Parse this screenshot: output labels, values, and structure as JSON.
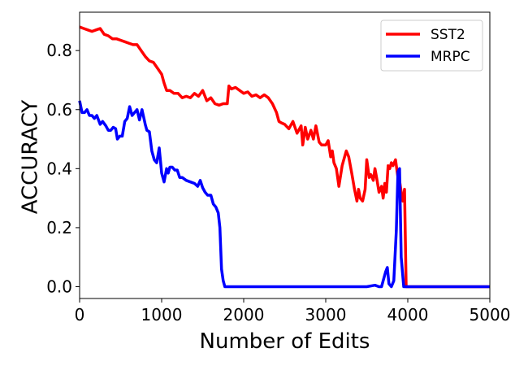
{
  "chart_data": {
    "type": "line",
    "title": "",
    "xlabel": "Number of Edits",
    "ylabel": "ACCURACY",
    "xlim": [
      0,
      5000
    ],
    "ylim": [
      -0.04,
      0.93
    ],
    "xticks": [
      0,
      1000,
      2000,
      3000,
      4000,
      5000
    ],
    "xtick_labels": [
      "0",
      "1000",
      "2000",
      "3000",
      "4000",
      "5000"
    ],
    "yticks": [
      0.0,
      0.2,
      0.4,
      0.6,
      0.8
    ],
    "ytick_labels": [
      "0.0",
      "0.2",
      "0.4",
      "0.6",
      "0.8"
    ],
    "grid": false,
    "legend_position": "top-right",
    "series": [
      {
        "name": "SST2",
        "color": "#ff0000",
        "x": [
          0,
          50,
          100,
          150,
          200,
          250,
          300,
          350,
          400,
          450,
          500,
          550,
          600,
          650,
          700,
          750,
          800,
          850,
          900,
          950,
          1000,
          1030,
          1060,
          1100,
          1150,
          1200,
          1250,
          1300,
          1350,
          1400,
          1450,
          1500,
          1550,
          1600,
          1650,
          1700,
          1750,
          1800,
          1820,
          1850,
          1900,
          1950,
          2000,
          2050,
          2100,
          2150,
          2200,
          2250,
          2300,
          2350,
          2400,
          2430,
          2460,
          2500,
          2550,
          2600,
          2650,
          2700,
          2720,
          2750,
          2780,
          2820,
          2850,
          2880,
          2920,
          2950,
          3000,
          3030,
          3060,
          3080,
          3100,
          3130,
          3160,
          3200,
          3220,
          3250,
          3280,
          3320,
          3350,
          3380,
          3400,
          3420,
          3450,
          3480,
          3500,
          3530,
          3550,
          3580,
          3600,
          3620,
          3650,
          3680,
          3700,
          3720,
          3740,
          3760,
          3780,
          3800,
          3820,
          3850,
          3880,
          3900,
          3920,
          3940,
          3960,
          3980,
          4000,
          4100,
          4500,
          5000
        ],
        "y": [
          0.88,
          0.875,
          0.87,
          0.865,
          0.87,
          0.875,
          0.855,
          0.85,
          0.84,
          0.84,
          0.835,
          0.83,
          0.825,
          0.82,
          0.82,
          0.8,
          0.78,
          0.765,
          0.76,
          0.74,
          0.72,
          0.69,
          0.665,
          0.665,
          0.655,
          0.655,
          0.64,
          0.645,
          0.64,
          0.655,
          0.645,
          0.665,
          0.63,
          0.64,
          0.62,
          0.615,
          0.62,
          0.62,
          0.68,
          0.67,
          0.675,
          0.665,
          0.655,
          0.66,
          0.645,
          0.65,
          0.64,
          0.65,
          0.64,
          0.62,
          0.59,
          0.56,
          0.555,
          0.55,
          0.535,
          0.56,
          0.52,
          0.545,
          0.48,
          0.54,
          0.5,
          0.53,
          0.5,
          0.545,
          0.49,
          0.48,
          0.48,
          0.495,
          0.44,
          0.46,
          0.42,
          0.4,
          0.34,
          0.41,
          0.43,
          0.46,
          0.44,
          0.38,
          0.33,
          0.29,
          0.33,
          0.3,
          0.29,
          0.33,
          0.43,
          0.37,
          0.38,
          0.36,
          0.4,
          0.37,
          0.32,
          0.34,
          0.3,
          0.35,
          0.32,
          0.41,
          0.4,
          0.42,
          0.41,
          0.43,
          0.37,
          0.36,
          0.32,
          0.29,
          0.33,
          0.0,
          0.0,
          0.0,
          0.0,
          0.0
        ]
      },
      {
        "name": "MRPC",
        "color": "#0000ff",
        "x": [
          0,
          30,
          60,
          90,
          120,
          150,
          180,
          210,
          250,
          280,
          320,
          350,
          380,
          410,
          440,
          460,
          490,
          520,
          550,
          580,
          610,
          640,
          670,
          700,
          730,
          760,
          780,
          800,
          820,
          850,
          880,
          910,
          940,
          970,
          1000,
          1030,
          1060,
          1080,
          1100,
          1130,
          1160,
          1190,
          1220,
          1250,
          1300,
          1350,
          1400,
          1440,
          1470,
          1500,
          1530,
          1560,
          1600,
          1630,
          1660,
          1690,
          1710,
          1730,
          1750,
          1770,
          1800,
          1900,
          2500,
          3000,
          3500,
          3600,
          3650,
          3680,
          3700,
          3730,
          3750,
          3770,
          3800,
          3830,
          3860,
          3880,
          3900,
          3920,
          3950,
          4000,
          4200,
          5000
        ],
        "y": [
          0.63,
          0.59,
          0.59,
          0.6,
          0.58,
          0.58,
          0.57,
          0.58,
          0.55,
          0.56,
          0.545,
          0.53,
          0.53,
          0.54,
          0.535,
          0.5,
          0.51,
          0.51,
          0.56,
          0.57,
          0.61,
          0.58,
          0.59,
          0.6,
          0.565,
          0.6,
          0.575,
          0.55,
          0.53,
          0.525,
          0.46,
          0.43,
          0.42,
          0.47,
          0.385,
          0.355,
          0.4,
          0.385,
          0.405,
          0.405,
          0.395,
          0.395,
          0.37,
          0.37,
          0.36,
          0.355,
          0.35,
          0.34,
          0.36,
          0.335,
          0.32,
          0.31,
          0.31,
          0.28,
          0.27,
          0.25,
          0.2,
          0.06,
          0.02,
          0.0,
          0.0,
          0.0,
          0.0,
          0.0,
          0.0,
          0.005,
          0.0,
          0.0,
          0.02,
          0.05,
          0.065,
          0.01,
          0.0,
          0.02,
          0.19,
          0.39,
          0.4,
          0.1,
          0.0,
          0.0,
          0.0,
          0.0
        ]
      }
    ]
  }
}
